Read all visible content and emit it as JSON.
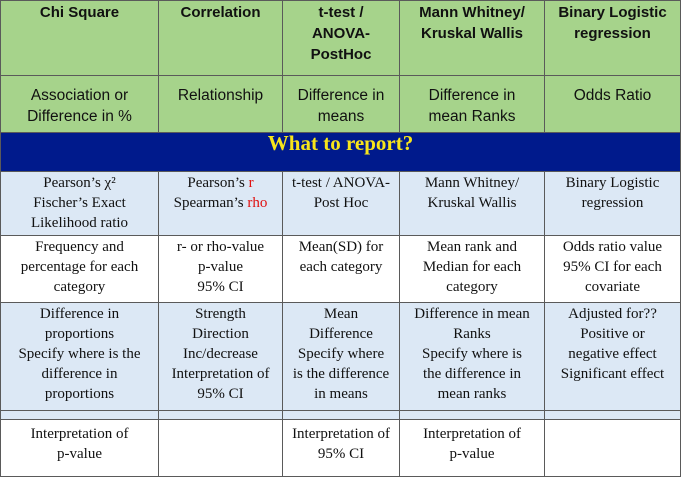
{
  "header": {
    "columns": [
      [
        "Chi Square"
      ],
      [
        "Correlation"
      ],
      [
        "t-test /",
        "ANOVA-",
        "PostHoc"
      ],
      [
        "Mann Whitney/",
        "Kruskal Wallis"
      ],
      [
        "Binary Logistic",
        "regression"
      ]
    ]
  },
  "measures": [
    [
      "Association or",
      "Difference in %"
    ],
    [
      "Relationship"
    ],
    [
      "Difference in",
      "means"
    ],
    [
      "Difference in",
      "mean Ranks"
    ],
    [
      "Odds Ratio"
    ]
  ],
  "banner": "What to report?",
  "tests": {
    "chi": [
      "Pearson’s χ²",
      "Fischer’s Exact",
      "Likelihood ratio"
    ],
    "corr_prefix_1": "Pearson’s ",
    "corr_red_1": "r",
    "corr_prefix_2": "Spearman’s ",
    "corr_red_2": "rho",
    "ttest": [
      "t-test / ANOVA-",
      "Post Hoc"
    ],
    "mann": [
      "Mann Whitney/",
      "Kruskal Wallis"
    ],
    "logit": [
      "Binary Logistic",
      "regression"
    ]
  },
  "statistics": [
    [
      "Frequency and",
      "percentage for each",
      "category"
    ],
    [
      "r- or rho-value",
      "p-value",
      "95% CI"
    ],
    [
      "Mean(SD) for",
      "each category"
    ],
    [
      "Mean rank and",
      "Median for each",
      "category"
    ],
    [
      "Odds ratio value",
      "95% CI for each",
      "covariate"
    ]
  ],
  "interpretation": [
    [
      "Difference in",
      "proportions",
      "Specify where is the",
      "difference in",
      "proportions"
    ],
    [
      "Strength",
      "Direction",
      "Inc/decrease",
      "Interpretation of",
      "95% CI"
    ],
    [
      "Mean",
      "Difference",
      "Specify where",
      "is the difference",
      "in means"
    ],
    [
      "Difference in mean",
      "Ranks",
      "Specify where is",
      "the difference in",
      "mean ranks"
    ],
    [
      "Adjusted for??",
      "Positive or",
      "negative effect",
      "Significant effect"
    ]
  ],
  "pvalue": [
    [
      "Interpretation of",
      "p-value"
    ],
    [],
    [
      "Interpretation of",
      "95% CI"
    ],
    [
      "Interpretation of",
      "p-value"
    ],
    []
  ]
}
